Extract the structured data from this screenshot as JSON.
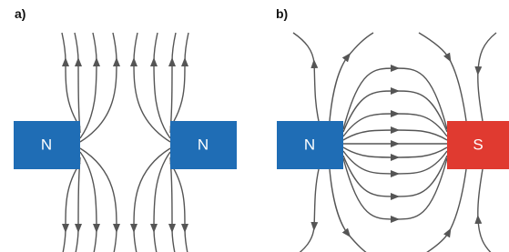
{
  "panel_a": {
    "label": "a)",
    "magnets": [
      "N",
      "N"
    ]
  },
  "panel_b": {
    "label": "b)",
    "magnets": [
      "N",
      "S"
    ]
  }
}
